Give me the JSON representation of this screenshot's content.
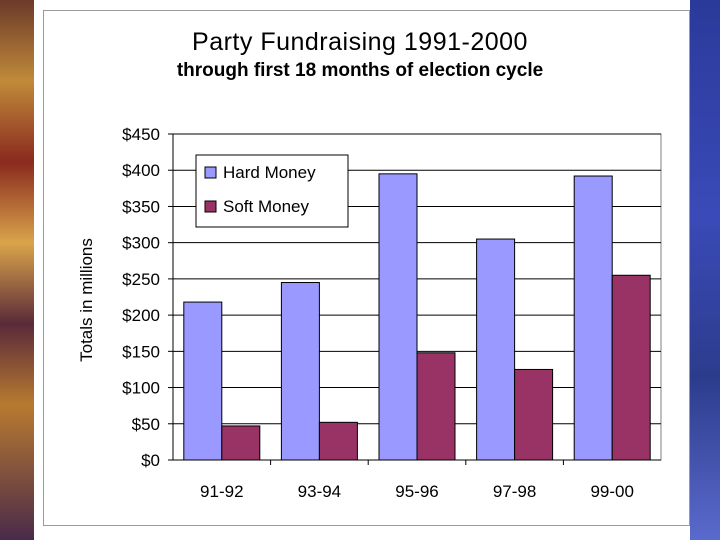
{
  "chart_data": {
    "type": "bar",
    "title": "Party Fundraising 1991-2000",
    "subtitle": "through first 18 months of election cycle",
    "ylabel": "Totals in millions",
    "xlabel": "",
    "categories": [
      "91-92",
      "93-94",
      "95-96",
      "97-98",
      "99-00"
    ],
    "series": [
      {
        "name": "Hard Money",
        "color": "#9999ff",
        "values": [
          218,
          245,
          395,
          305,
          392
        ]
      },
      {
        "name": "Soft Money",
        "color": "#993366",
        "values": [
          47,
          52,
          148,
          125,
          255
        ]
      }
    ],
    "ylim": [
      0,
      450
    ],
    "yticks": [
      "$0",
      "$50",
      "$100",
      "$150",
      "$200",
      "$250",
      "$300",
      "$350",
      "$400",
      "$450"
    ],
    "grid": true,
    "legend_position": "top-left"
  }
}
